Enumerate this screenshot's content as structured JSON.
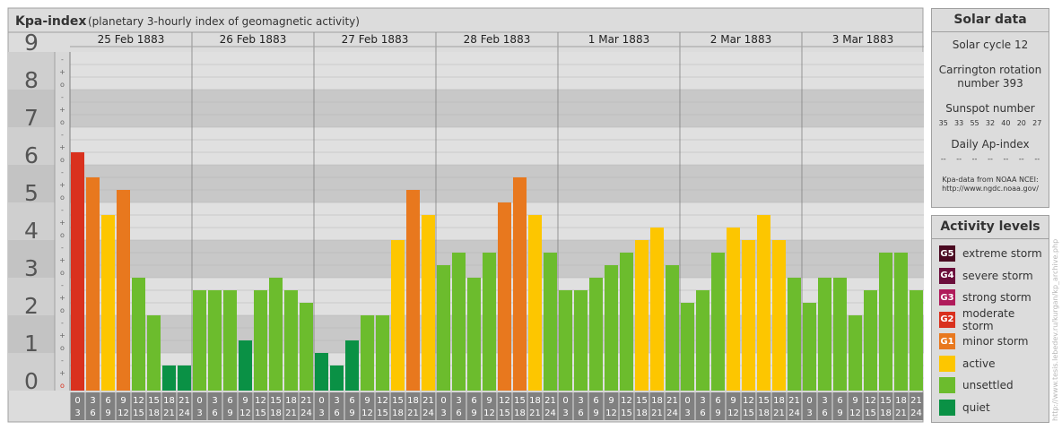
{
  "header": {
    "title": "Kpa-index",
    "subtitle": "(planetary 3-hourly index of geomagnetic activity)"
  },
  "chart_data": {
    "type": "bar",
    "ylim": [
      0,
      9
    ],
    "y_ticks": [
      "0",
      "1",
      "2",
      "3",
      "4",
      "5",
      "6",
      "7",
      "8",
      "9"
    ],
    "sub_ticks": [
      "o",
      "+",
      "-"
    ],
    "days": [
      {
        "label": "25 Feb 1883",
        "values": [
          6.333,
          5.667,
          4.667,
          5.333,
          3.0,
          2.0,
          0.667,
          0.667
        ]
      },
      {
        "label": "26 Feb 1883",
        "values": [
          2.667,
          2.667,
          2.667,
          1.333,
          2.667,
          3.0,
          2.667,
          2.333
        ]
      },
      {
        "label": "27 Feb 1883",
        "values": [
          1.0,
          0.667,
          1.333,
          2.0,
          2.0,
          4.0,
          5.333,
          4.667
        ]
      },
      {
        "label": "28 Feb 1883",
        "values": [
          3.333,
          3.667,
          3.0,
          3.667,
          5.0,
          5.667,
          4.667,
          3.667
        ]
      },
      {
        "label": "1 Mar 1883",
        "values": [
          2.667,
          2.667,
          3.0,
          3.333,
          3.667,
          4.0,
          4.333,
          3.333
        ]
      },
      {
        "label": "2 Mar 1883",
        "values": [
          2.333,
          2.667,
          3.667,
          4.333,
          4.0,
          4.667,
          4.0,
          3.0
        ]
      },
      {
        "label": "3 Mar 1883",
        "values": [
          2.333,
          3.0,
          3.0,
          2.0,
          2.667,
          3.667,
          3.667,
          2.667
        ]
      }
    ],
    "hour_ticks": [
      [
        "0",
        "3"
      ],
      [
        "3",
        "6"
      ],
      [
        "6",
        "9"
      ],
      [
        "9",
        "12"
      ],
      [
        "12",
        "15"
      ],
      [
        "15",
        "18"
      ],
      [
        "18",
        "21"
      ],
      [
        "21",
        "24"
      ]
    ],
    "colors": {
      "quiet": "#0a9145",
      "unsettled": "#6cbc2d",
      "active": "#fdc600",
      "minor": "#e8781e",
      "moderate": "#d9311e",
      "strong": "#b01b5b",
      "severe": "#6b0e3b",
      "extreme": "#4a0a21"
    }
  },
  "solar": {
    "title": "Solar data",
    "cycle": "Solar cycle 12",
    "carrington_1": "Carrington rotation",
    "carrington_2": "number 393",
    "sunspot_label": "Sunspot number",
    "sunspots": [
      "35",
      "33",
      "55",
      "32",
      "40",
      "20",
      "27"
    ],
    "ap_label": "Daily Ap-index",
    "ap": [
      "--",
      "--",
      "--",
      "--",
      "--",
      "--",
      "--"
    ],
    "source_1": "Kpa-data from NOAA NCEI:",
    "source_2": "http://www.ngdc.noaa.gov/"
  },
  "activity": {
    "title": "Activity levels",
    "levels": [
      {
        "code": "G5",
        "label": "extreme storm",
        "color": "#4a0a21"
      },
      {
        "code": "G4",
        "label": "severe storm",
        "color": "#6b0e3b"
      },
      {
        "code": "G3",
        "label": "strong storm",
        "color": "#b01b5b"
      },
      {
        "code": "G2",
        "label": "moderate storm",
        "color": "#d9311e"
      },
      {
        "code": "G1",
        "label": "minor storm",
        "color": "#e8781e"
      },
      {
        "code": "",
        "label": "active",
        "color": "#fdc600"
      },
      {
        "code": "",
        "label": "unsettled",
        "color": "#6cbc2d"
      },
      {
        "code": "",
        "label": "quiet",
        "color": "#0a9145"
      }
    ]
  },
  "credit": "http://www.tesis.lebedev.ru/kurgan/kp_archive.php"
}
